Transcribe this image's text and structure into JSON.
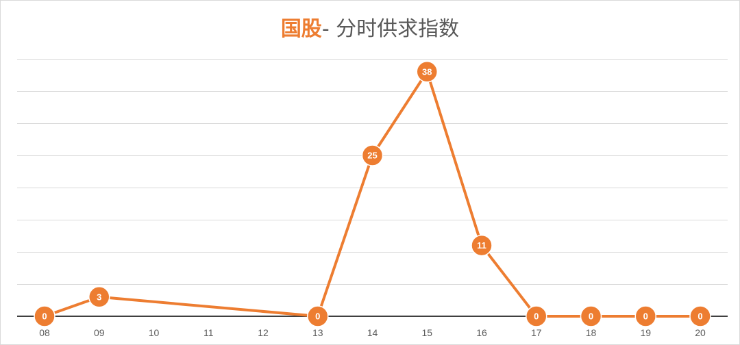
{
  "title": {
    "highlight": "国股",
    "rest": "- 分时供求指数"
  },
  "colors": {
    "series": "#ed7d31",
    "gridline": "#d9d9d9",
    "baseline": "#404040",
    "tick": "#595959"
  },
  "chart_data": {
    "type": "line",
    "title": "国股- 分时供求指数",
    "categories": [
      "08",
      "09",
      "10",
      "11",
      "12",
      "13",
      "14",
      "15",
      "16",
      "17",
      "18",
      "19",
      "20"
    ],
    "series": [
      {
        "values": [
          0,
          3,
          null,
          null,
          null,
          0,
          25,
          38,
          11,
          0,
          0,
          0,
          0
        ],
        "data_labels": true
      }
    ],
    "ylim": [
      0,
      40
    ],
    "grid": true,
    "legend": "none",
    "xlabel": "",
    "ylabel": ""
  }
}
